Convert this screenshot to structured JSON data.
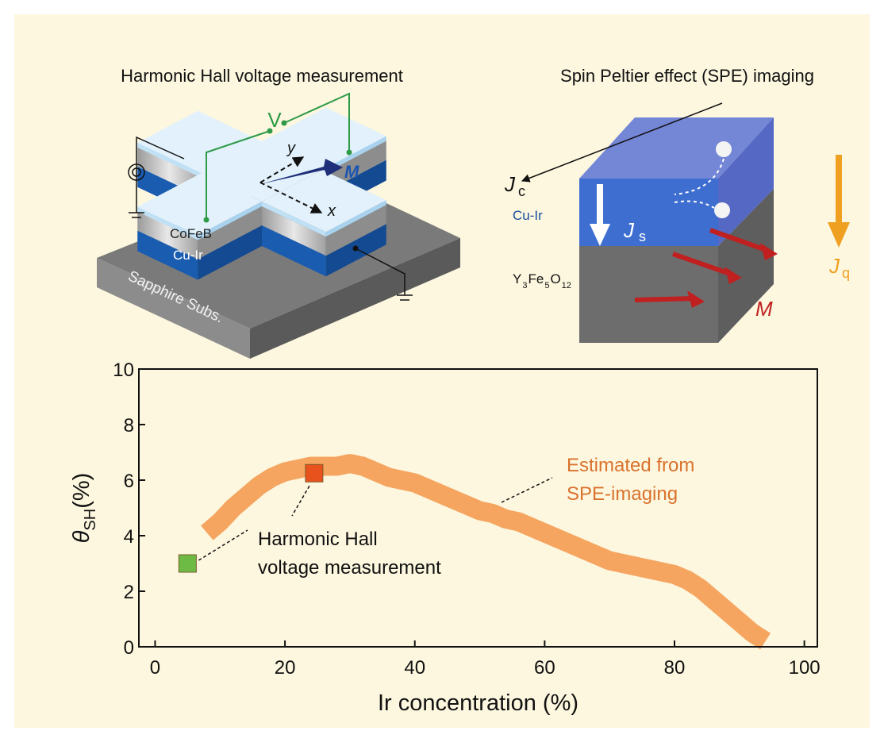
{
  "chart_data": {
    "type": "line",
    "x_label": "Ir concentration (%)",
    "y_label": {
      "symbol": "θ",
      "subscript": "SH",
      "unit": "(%)"
    },
    "xlim": [
      -2.5,
      102
    ],
    "ylim": [
      0,
      10
    ],
    "xticks": [
      0,
      20,
      40,
      60,
      80,
      100
    ],
    "yticks": [
      0,
      2,
      4,
      6,
      8,
      10
    ],
    "series": [
      {
        "kind": "band",
        "color": "#f5a55f",
        "x": [
          8,
          10,
          12,
          14,
          16,
          18,
          20,
          22,
          24,
          26,
          28,
          30,
          32,
          34,
          36,
          38,
          40,
          42,
          44,
          46,
          48,
          50,
          52,
          54,
          56,
          58,
          60,
          62,
          64,
          66,
          68,
          70,
          72,
          74,
          76,
          78,
          80,
          82,
          84,
          86,
          88,
          90,
          92,
          94
        ],
        "values": [
          4.1,
          4.5,
          5.0,
          5.4,
          5.8,
          6.1,
          6.3,
          6.4,
          6.5,
          6.5,
          6.5,
          6.6,
          6.5,
          6.3,
          6.1,
          6.0,
          5.9,
          5.7,
          5.5,
          5.3,
          5.1,
          4.9,
          4.8,
          4.6,
          4.5,
          4.3,
          4.1,
          3.9,
          3.7,
          3.5,
          3.3,
          3.1,
          3.0,
          2.9,
          2.8,
          2.7,
          2.6,
          2.4,
          2.1,
          1.7,
          1.3,
          0.9,
          0.5,
          0.2
        ]
      },
      {
        "kind": "square",
        "color": "#6dbb45",
        "x": [
          5
        ],
        "values": [
          3.0
        ]
      },
      {
        "kind": "square",
        "color": "#e8521c",
        "x": [
          24.5
        ],
        "values": [
          6.25
        ]
      }
    ],
    "annotations": [
      {
        "lines": [
          "Harmonic Hall",
          "voltage measurement"
        ],
        "color": "#111111"
      },
      {
        "lines": [
          "Estimated from",
          "SPE-imaging"
        ],
        "color": "#d9722d"
      }
    ]
  },
  "diagrams": {
    "left": {
      "title": "Harmonic Hall voltage measurement",
      "voltage": "V",
      "y_axis": "y",
      "x_axis": "x",
      "magnetization": "M",
      "layer_top": "CoFeB",
      "layer_bottom": "Cu-Ir",
      "substrate": "Sapphire Subs."
    },
    "right": {
      "title": "Spin Peltier effect (SPE) imaging",
      "charge_current": {
        "symbol": "J",
        "subscript": "c"
      },
      "layer_top": "Cu-Ir",
      "spin_current": {
        "symbol": "J",
        "subscript": "s"
      },
      "layer_bottom": [
        "Y",
        "3",
        "Fe",
        "5",
        "O",
        "12"
      ],
      "heat_current": {
        "symbol": "J",
        "subscript": "q"
      },
      "magnetization": "M"
    }
  }
}
